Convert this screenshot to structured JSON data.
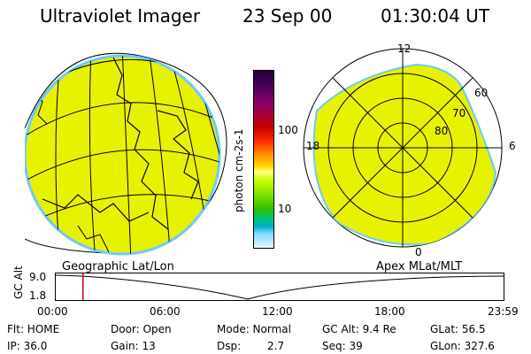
{
  "header": {
    "title": "Ultraviolet Imager",
    "date": "23 Sep 00",
    "time": "01:30:04 UT"
  },
  "colorbar": {
    "label": "photon cm-2s-1",
    "ticks": [
      "100",
      "10"
    ]
  },
  "polar_map": {
    "mlt_labels": {
      "top": "12",
      "left": "18",
      "right": "6",
      "bottom": "0"
    },
    "lat_labels": [
      "60",
      "70",
      "80"
    ]
  },
  "panels": {
    "geo_label": "Geographic Lat/Lon",
    "apex_label": "Apex MLat/MLT"
  },
  "altitude_plot": {
    "ylabel": "GC Alt",
    "y_ticks": [
      "9.0",
      "1.8"
    ],
    "x_ticks": [
      "00:00",
      "06:00",
      "12:00",
      "18:00",
      "23:59"
    ],
    "current_time_fraction": 0.0625
  },
  "footer": {
    "flt": "Flt: HOME",
    "ip": "IP: 36.0",
    "door": "Door: Open",
    "gain": "Gain: 13",
    "mode": "Mode: Normal",
    "dsp_label": "Dsp:",
    "dsp_value": "2.7",
    "gc_alt": "GC Alt: 9.4 Re",
    "seq": "Seq: 39",
    "glat": "GLat:  56.5",
    "glon": "GLon: 327.6"
  },
  "colors": {
    "image_fill": "#e6f200",
    "edge": "#6ec8ff",
    "marker": "#d00000"
  }
}
